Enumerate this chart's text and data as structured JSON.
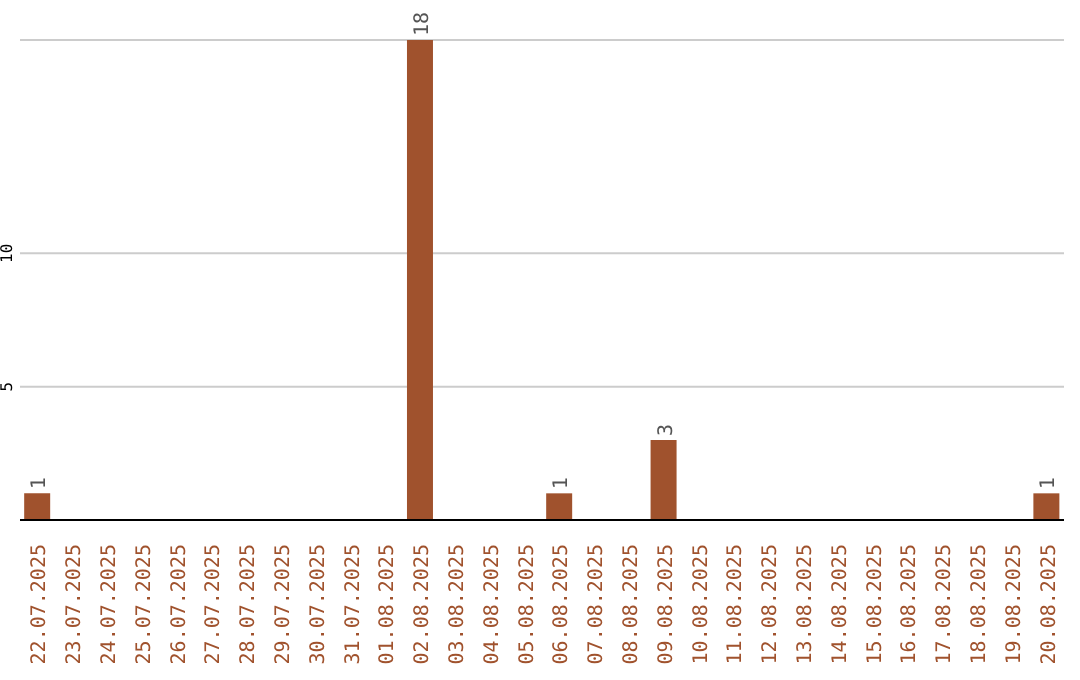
{
  "chart_data": {
    "type": "bar",
    "categories": [
      "22.07.2025",
      "23.07.2025",
      "24.07.2025",
      "25.07.2025",
      "26.07.2025",
      "27.07.2025",
      "28.07.2025",
      "29.07.2025",
      "30.07.2025",
      "31.07.2025",
      "01.08.2025",
      "02.08.2025",
      "03.08.2025",
      "04.08.2025",
      "05.08.2025",
      "06.08.2025",
      "07.08.2025",
      "08.08.2025",
      "09.08.2025",
      "10.08.2025",
      "11.08.2025",
      "12.08.2025",
      "13.08.2025",
      "14.08.2025",
      "15.08.2025",
      "16.08.2025",
      "17.08.2025",
      "18.08.2025",
      "19.08.2025",
      "20.08.2025"
    ],
    "values": [
      1,
      0,
      0,
      0,
      0,
      0,
      0,
      0,
      0,
      0,
      0,
      18,
      0,
      0,
      0,
      1,
      0,
      0,
      3,
      0,
      0,
      0,
      0,
      0,
      0,
      0,
      0,
      0,
      0,
      1
    ],
    "value_labels": [
      "1",
      null,
      null,
      null,
      null,
      null,
      null,
      null,
      null,
      null,
      null,
      "18",
      null,
      null,
      null,
      "1",
      null,
      null,
      "3",
      null,
      null,
      null,
      null,
      null,
      null,
      null,
      null,
      null,
      null,
      "1"
    ],
    "color": "#a0522d",
    "ylim": [
      0,
      18
    ],
    "yticks": [
      5,
      10
    ],
    "grid": "y"
  }
}
